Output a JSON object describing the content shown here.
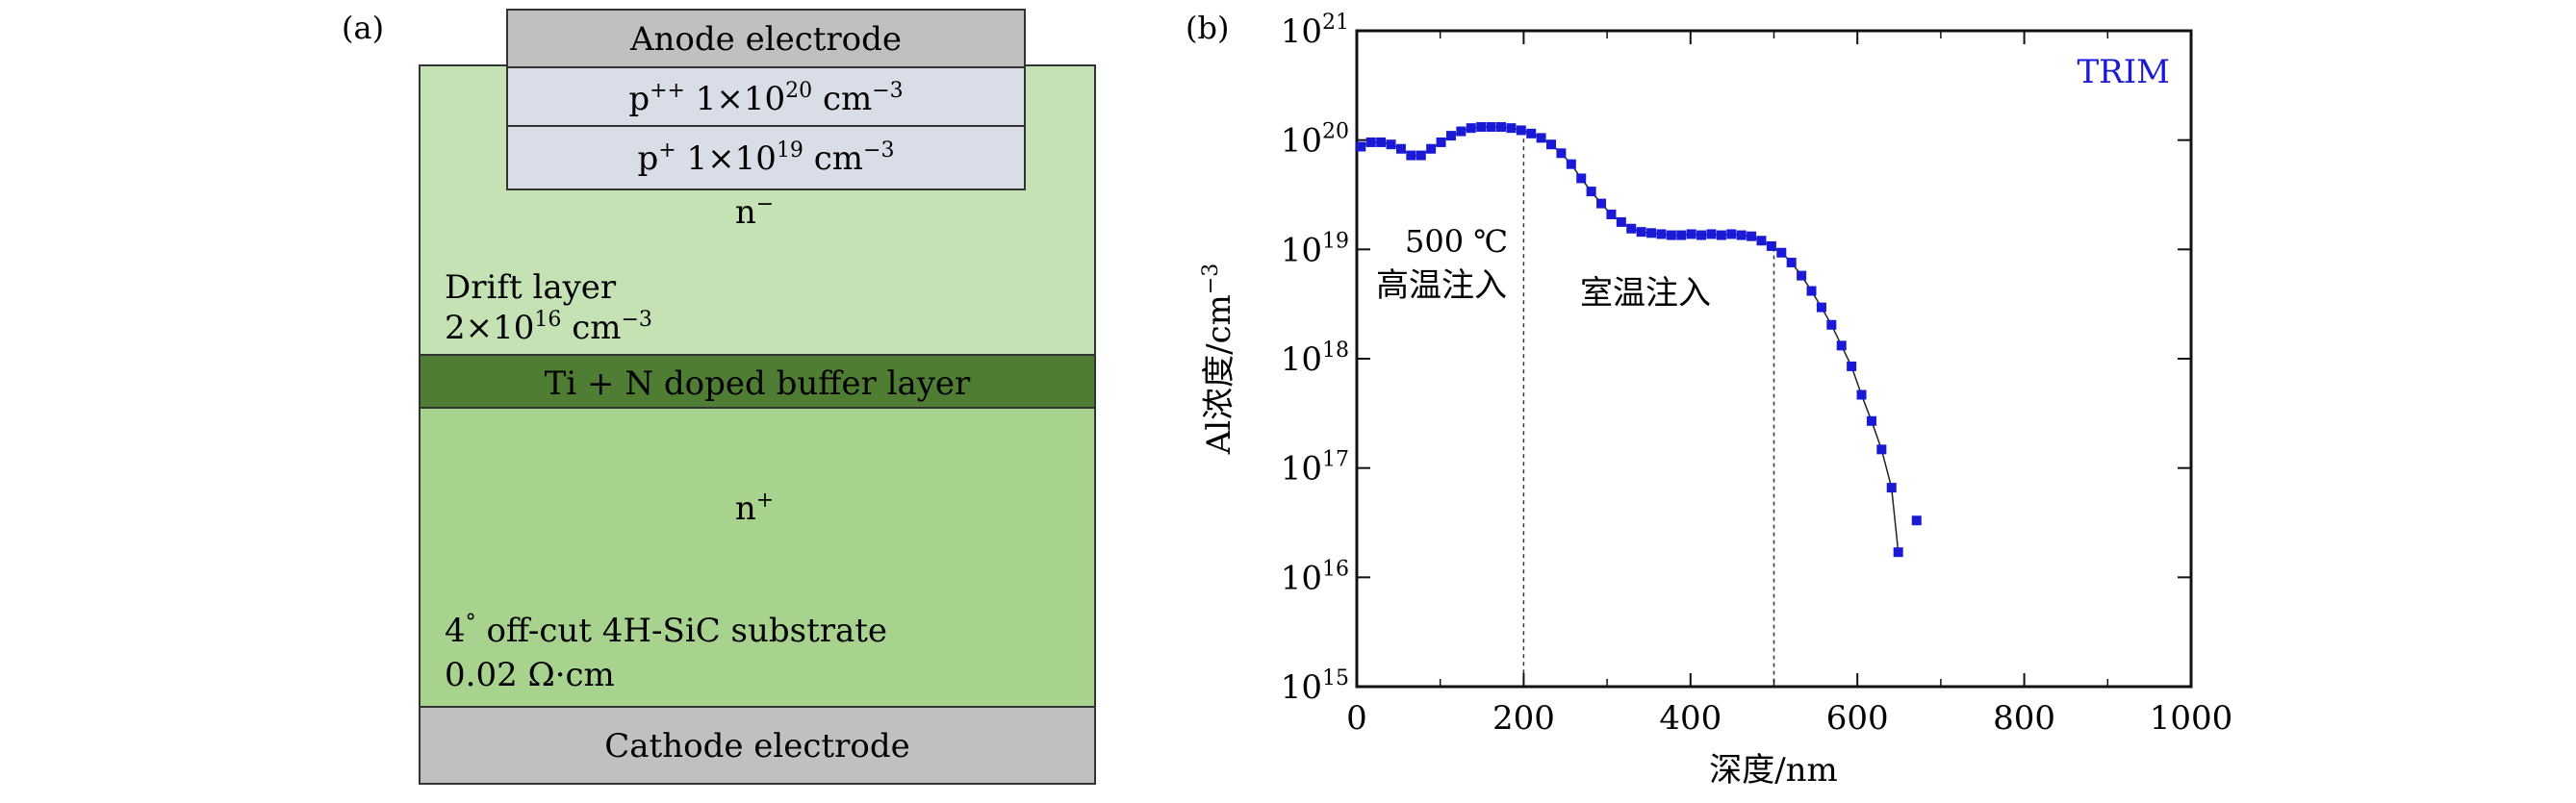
{
  "panel_a": {
    "label": "(a)",
    "anode": "Anode electrode",
    "p_plus_plus": {
      "base": "p",
      "sup": "++",
      "mid": " 1×10",
      "exp": "20",
      "unit": " cm",
      "unit_exp": "−3"
    },
    "p_plus": {
      "base": "p",
      "sup": "+",
      "mid": " 1×10",
      "exp": "19",
      "unit": " cm",
      "unit_exp": "−3"
    },
    "n_minus": {
      "base": "n",
      "sup": "−"
    },
    "drift_line1": "Drift layer",
    "drift_line2": {
      "mid": "2×10",
      "exp": "16",
      "unit": " cm",
      "unit_exp": "−3"
    },
    "buffer": "Ti + N doped buffer layer",
    "n_plus": {
      "base": "n",
      "sup": "+"
    },
    "substrate_line1": {
      "pre": "4",
      "sup": "°",
      "post": " off-cut 4H-SiC substrate"
    },
    "substrate_line2": "0.02 Ω·cm",
    "cathode": "Cathode electrode",
    "colors": {
      "electrode": "#c0c0c0",
      "p_layer": "#d8dde8",
      "drift": "#c4e2b4",
      "buffer": "#4f7d34",
      "substrate": "#a8d38e"
    }
  },
  "panel_b": {
    "label": "(b)",
    "legend": "TRIM",
    "annotation_hot_line1": "500 ℃",
    "annotation_hot_line2": "高温注入",
    "annotation_room": "室温注入",
    "colors": {
      "series": "#1a1ad6",
      "line": "#222222"
    }
  },
  "chart_data": {
    "type": "scatter",
    "title": "",
    "xlabel": "深度/nm",
    "ylabel": {
      "pre": "Al浓度/cm",
      "exp": "−3"
    },
    "xlim": [
      0,
      1000
    ],
    "ylim_log10": [
      15,
      21
    ],
    "x_ticks": [
      0,
      200,
      400,
      600,
      800,
      1000
    ],
    "y_tick_exponents": [
      15,
      16,
      17,
      18,
      19,
      20,
      21
    ],
    "y_tick_base": "10",
    "vlines": [
      200,
      500
    ],
    "series": [
      {
        "name": "TRIM",
        "x": [
          5,
          17,
          29,
          41,
          53,
          65,
          77,
          89,
          101,
          113,
          125,
          137,
          149,
          161,
          173,
          185,
          197,
          209,
          221,
          233,
          245,
          257,
          269,
          281,
          293,
          305,
          317,
          329,
          341,
          353,
          365,
          377,
          389,
          401,
          413,
          425,
          437,
          449,
          461,
          473,
          485,
          497,
          509,
          521,
          533,
          545,
          557,
          569,
          581,
          593,
          605,
          617,
          629,
          641,
          649,
          671
        ],
        "log10_values": [
          19.94,
          19.98,
          19.98,
          19.96,
          19.92,
          19.86,
          19.86,
          19.92,
          19.98,
          20.04,
          20.08,
          20.11,
          20.12,
          20.12,
          20.12,
          20.11,
          20.09,
          20.06,
          20.02,
          19.96,
          19.88,
          19.78,
          19.65,
          19.53,
          19.42,
          19.32,
          19.25,
          19.19,
          19.16,
          19.15,
          19.14,
          19.13,
          19.13,
          19.14,
          19.13,
          19.14,
          19.13,
          19.14,
          19.13,
          19.12,
          19.08,
          19.03,
          18.97,
          18.88,
          18.76,
          18.62,
          18.47,
          18.31,
          18.12,
          17.93,
          17.67,
          17.43,
          17.17,
          16.82,
          16.23,
          16.52
        ]
      }
    ]
  }
}
